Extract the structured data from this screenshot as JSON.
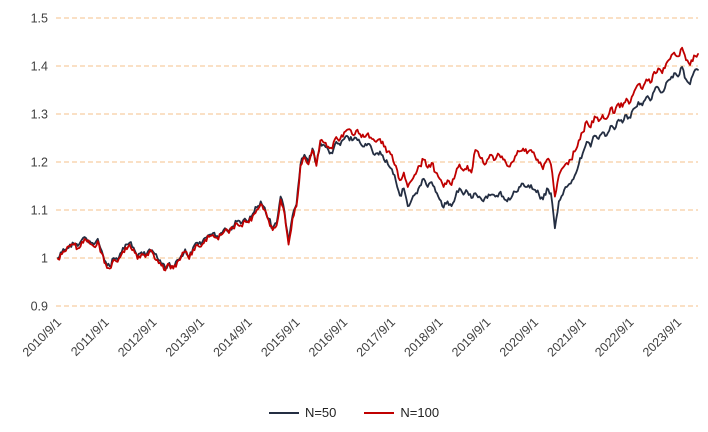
{
  "chart_data": {
    "type": "line",
    "title": "",
    "x_unit": "month",
    "x_start_label": "2010/9/1",
    "x_tick_interval_points": 12,
    "x_tick_labels": [
      "2010/9/1",
      "2011/9/1",
      "2012/9/1",
      "2013/9/1",
      "2014/9/1",
      "2015/9/1",
      "2016/9/1",
      "2017/9/1",
      "2018/9/1",
      "2019/9/1",
      "2020/9/1",
      "2021/9/1",
      "2022/9/1",
      "2023/9/1"
    ],
    "y_ticks": [
      0.9,
      1,
      1.1,
      1.2,
      1.3,
      1.4,
      1.5
    ],
    "y_tick_labels": [
      "0.9",
      "1",
      "1.1",
      "1.2",
      "1.3",
      "1.4",
      "1.5"
    ],
    "ylim": [
      0.9,
      1.5
    ],
    "grid": "horizontal-dashed",
    "gridline_color": "#F5C28B",
    "legend_position": "bottom",
    "series": [
      {
        "name": "N=50",
        "color": "#242E42",
        "values": [
          1.0,
          1.012,
          1.018,
          1.028,
          1.03,
          1.025,
          1.038,
          1.042,
          1.035,
          1.028,
          1.04,
          1.015,
          0.992,
          0.983,
          1.0,
          0.996,
          1.012,
          1.028,
          1.032,
          1.022,
          1.002,
          1.012,
          1.006,
          1.018,
          1.012,
          1.0,
          0.988,
          0.978,
          0.99,
          0.982,
          0.996,
          1.005,
          1.018,
          1.002,
          1.022,
          1.032,
          1.028,
          1.042,
          1.048,
          1.052,
          1.046,
          1.052,
          1.062,
          1.056,
          1.066,
          1.076,
          1.072,
          1.082,
          1.078,
          1.092,
          1.105,
          1.118,
          1.105,
          1.082,
          1.062,
          1.072,
          1.128,
          1.096,
          1.032,
          1.088,
          1.112,
          1.195,
          1.215,
          1.198,
          1.228,
          1.195,
          1.24,
          1.235,
          1.225,
          1.218,
          1.242,
          1.235,
          1.248,
          1.252,
          1.245,
          1.25,
          1.24,
          1.232,
          1.238,
          1.225,
          1.218,
          1.222,
          1.205,
          1.195,
          1.185,
          1.16,
          1.13,
          1.145,
          1.108,
          1.122,
          1.135,
          1.15,
          1.165,
          1.148,
          1.158,
          1.138,
          1.122,
          1.105,
          1.118,
          1.108,
          1.128,
          1.145,
          1.132,
          1.138,
          1.125,
          1.135,
          1.128,
          1.118,
          1.125,
          1.132,
          1.128,
          1.135,
          1.128,
          1.118,
          1.125,
          1.138,
          1.148,
          1.155,
          1.148,
          1.152,
          1.142,
          1.132,
          1.122,
          1.145,
          1.135,
          1.062,
          1.118,
          1.132,
          1.148,
          1.155,
          1.172,
          1.195,
          1.218,
          1.242,
          1.232,
          1.255,
          1.248,
          1.262,
          1.255,
          1.275,
          1.268,
          1.288,
          1.282,
          1.298,
          1.292,
          1.312,
          1.325,
          1.318,
          1.335,
          1.328,
          1.348,
          1.355,
          1.345,
          1.365,
          1.372,
          1.385,
          1.378,
          1.398,
          1.372,
          1.362,
          1.388,
          1.392
        ]
      },
      {
        "name": "N=100",
        "color": "#C00000",
        "values": [
          0.998,
          1.008,
          1.015,
          1.024,
          1.028,
          1.02,
          1.034,
          1.038,
          1.03,
          1.024,
          1.035,
          1.01,
          0.988,
          0.978,
          0.996,
          0.992,
          1.008,
          1.022,
          1.028,
          1.018,
          0.998,
          1.008,
          1.002,
          1.014,
          1.008,
          0.996,
          0.984,
          0.974,
          0.986,
          0.978,
          0.992,
          1.002,
          1.014,
          0.998,
          1.018,
          1.028,
          1.024,
          1.038,
          1.044,
          1.048,
          1.042,
          1.048,
          1.058,
          1.052,
          1.062,
          1.072,
          1.068,
          1.078,
          1.074,
          1.088,
          1.1,
          1.112,
          1.1,
          1.078,
          1.058,
          1.068,
          1.122,
          1.092,
          1.028,
          1.082,
          1.108,
          1.192,
          1.21,
          1.195,
          1.225,
          1.192,
          1.245,
          1.24,
          1.232,
          1.228,
          1.252,
          1.248,
          1.262,
          1.268,
          1.258,
          1.265,
          1.258,
          1.252,
          1.26,
          1.248,
          1.242,
          1.248,
          1.232,
          1.222,
          1.215,
          1.192,
          1.162,
          1.178,
          1.148,
          1.162,
          1.175,
          1.192,
          1.205,
          1.188,
          1.198,
          1.178,
          1.165,
          1.148,
          1.162,
          1.152,
          1.175,
          1.195,
          1.182,
          1.192,
          1.178,
          1.225,
          1.212,
          1.198,
          1.205,
          1.215,
          1.205,
          1.215,
          1.205,
          1.192,
          1.198,
          1.212,
          1.222,
          1.228,
          1.218,
          1.225,
          1.212,
          1.198,
          1.185,
          1.205,
          1.195,
          1.128,
          1.172,
          1.188,
          1.198,
          1.205,
          1.222,
          1.245,
          1.262,
          1.285,
          1.272,
          1.295,
          1.285,
          1.298,
          1.29,
          1.312,
          1.302,
          1.322,
          1.315,
          1.332,
          1.325,
          1.348,
          1.362,
          1.352,
          1.372,
          1.365,
          1.388,
          1.395,
          1.385,
          1.405,
          1.415,
          1.428,
          1.42,
          1.438,
          1.412,
          1.402,
          1.422,
          1.425
        ]
      }
    ]
  }
}
